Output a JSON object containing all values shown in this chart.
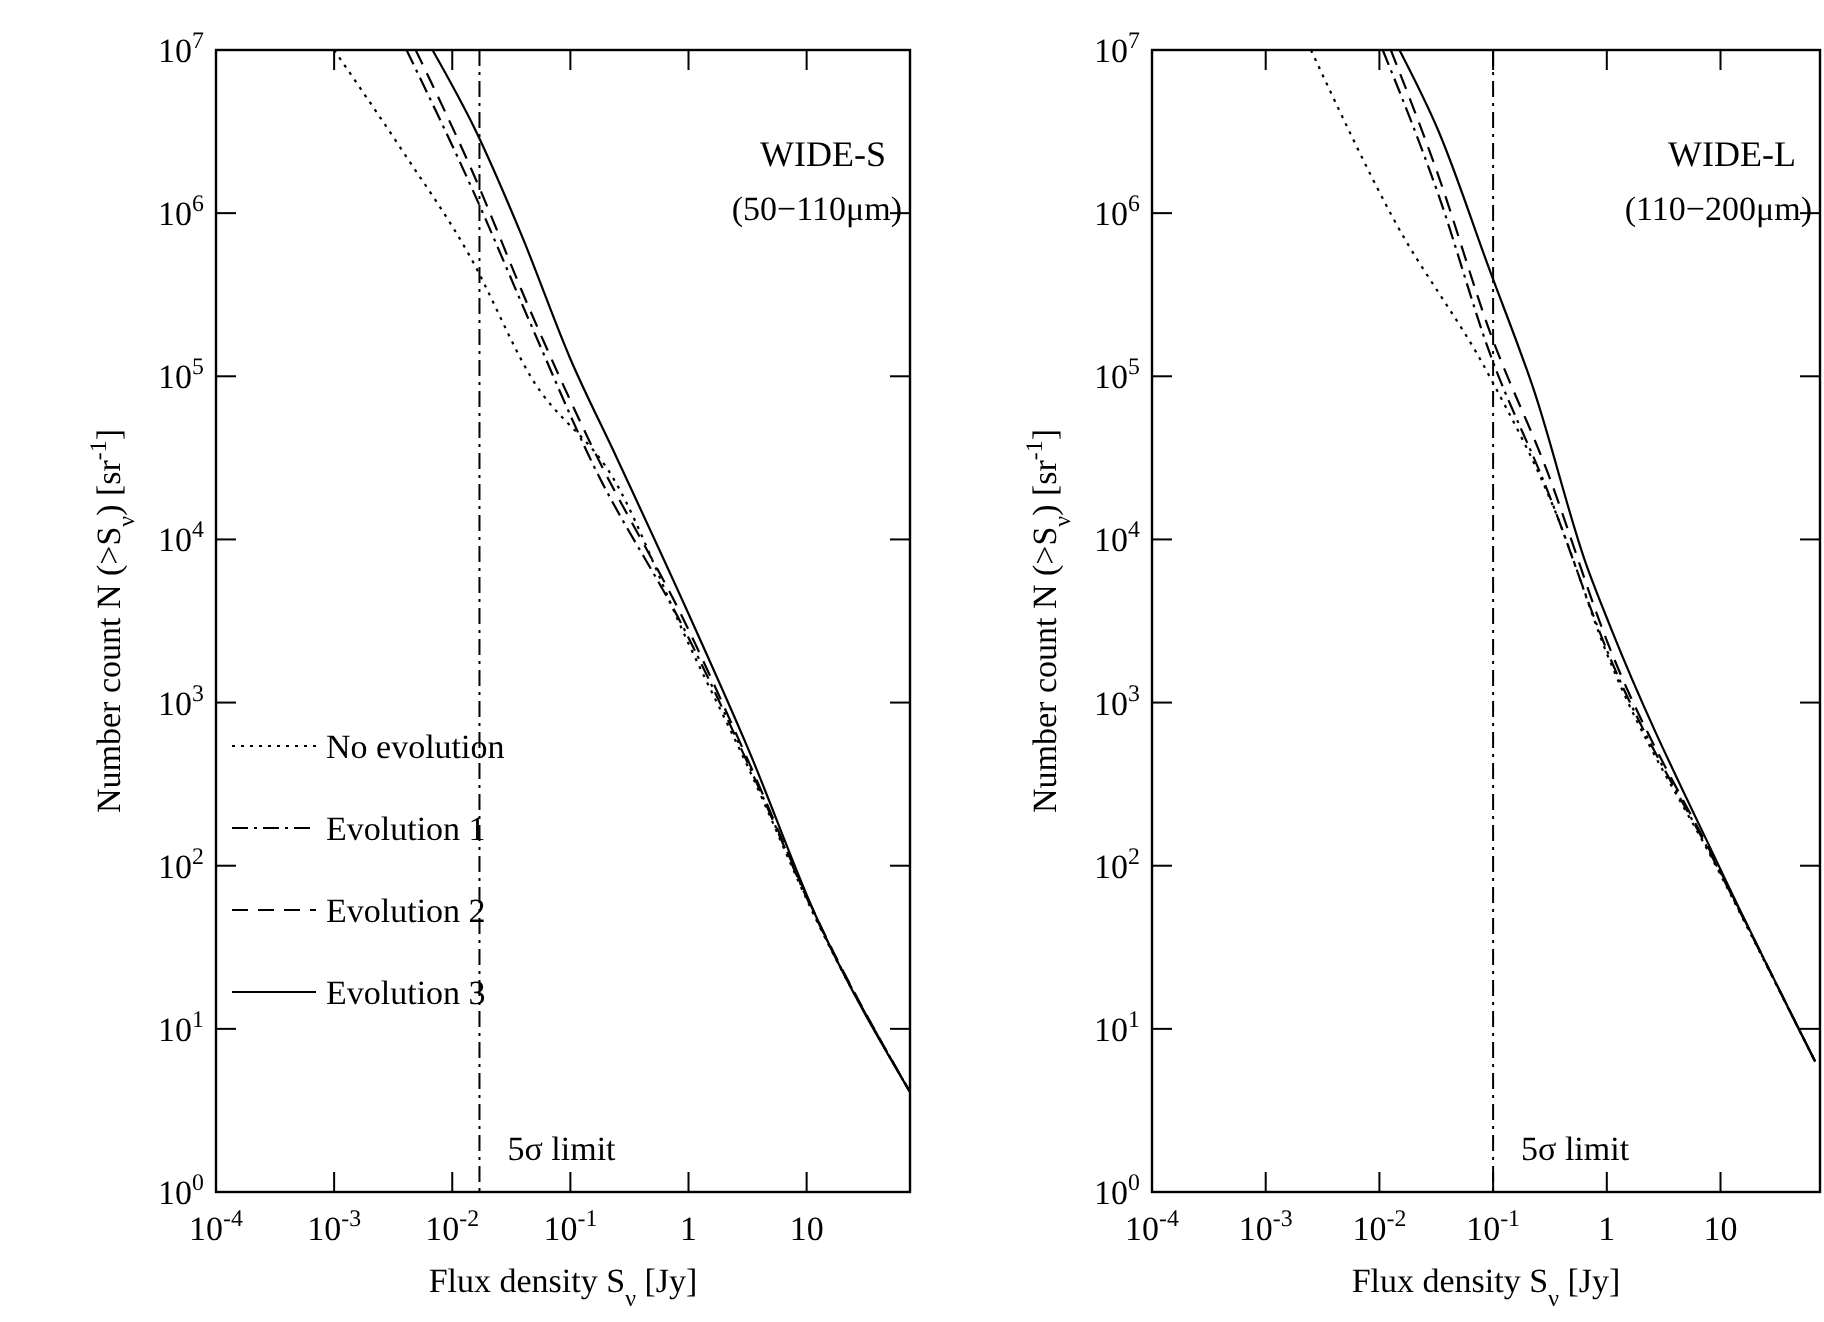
{
  "chart_data": [
    {
      "type": "line",
      "title": "WIDE-S",
      "subtitle": "(50−110μm)",
      "xlabel": "Flux density S$_{ν}$ [Jy]",
      "ylabel": "Number count N (>S$_{ν}$) [sr$^{-1}$]",
      "log": "xy",
      "legend": "bottom left",
      "xlim": [
        0.0001,
        75
      ],
      "ylim": [
        1,
        10000000
      ],
      "xticks": [
        {
          "value": 0.0001,
          "label": "10$^{-4}$"
        },
        {
          "value": 0.001,
          "label": "10$^{-3}$"
        },
        {
          "value": 0.01,
          "label": "10$^{-2}$"
        },
        {
          "value": 0.1,
          "label": "10$^{-1}$"
        },
        {
          "value": 1,
          "label": "1"
        },
        {
          "value": 10,
          "label": "10"
        }
      ],
      "yticks": [
        {
          "value": 1,
          "label": "10$^{0}$"
        },
        {
          "value": 10,
          "label": "10$^{1}$"
        },
        {
          "value": 100,
          "label": "10$^{2}$"
        },
        {
          "value": 1000,
          "label": "10$^{3}$"
        },
        {
          "value": 10000,
          "label": "10$^{4}$"
        },
        {
          "value": 100000,
          "label": "10$^{5}$"
        },
        {
          "value": 1000000,
          "label": "10$^{6}$"
        },
        {
          "value": 10000000,
          "label": "10$^{7}$"
        }
      ],
      "ref_lines": [
        {
          "axis": "x",
          "value": 0.017,
          "label": "5σ limit",
          "line_style": "dashdot"
        }
      ],
      "series": [
        {
          "name": "No evolution",
          "color": "#000000",
          "line_style": "dotted",
          "x": [
            0.001,
            0.0038,
            0.014,
            0.046,
            0.245,
            1,
            3.2,
            12,
            75
          ],
          "values": [
            10000000,
            2400000,
            550000,
            100000,
            22000,
            2300,
            400,
            47,
            4.1
          ]
        },
        {
          "name": "Evolution 1",
          "color": "#000000",
          "line_style": "dashdot",
          "x": [
            0.0041,
            0.0148,
            0.046,
            0.145,
            1,
            3.2,
            12,
            75
          ],
          "values": [
            10000000,
            1400000,
            210000,
            32000,
            2500,
            420,
            48,
            4.1
          ]
        },
        {
          "name": "Evolution 2",
          "color": "#000000",
          "line_style": "dashed",
          "x": [
            0.0049,
            0.0148,
            0.046,
            0.145,
            1,
            3.2,
            12,
            75
          ],
          "values": [
            10000000,
            1800000,
            250000,
            40000,
            2800,
            440,
            49,
            4.1
          ]
        },
        {
          "name": "Evolution 3",
          "color": "#000000",
          "line_style": "solid",
          "x": [
            0.0068,
            0.0158,
            0.039,
            0.099,
            0.245,
            1,
            3.2,
            12,
            75
          ],
          "values": [
            10000000,
            3200000,
            720000,
            130000,
            32000,
            3500,
            520,
            49,
            4.1
          ]
        }
      ]
    },
    {
      "type": "line",
      "title": "WIDE-L",
      "subtitle": "(110−200μm)",
      "xlabel": "Flux density S$_{ν}$ [Jy]",
      "ylabel": "Number count N (>S$_{ν}$) [sr$^{-1}$]",
      "log": "xy",
      "xlim": [
        0.0001,
        75
      ],
      "ylim": [
        1,
        10000000
      ],
      "xticks": [
        {
          "value": 0.0001,
          "label": "10$^{-4}$"
        },
        {
          "value": 0.001,
          "label": "10$^{-3}$"
        },
        {
          "value": 0.01,
          "label": "10$^{-2}$"
        },
        {
          "value": 0.1,
          "label": "10$^{-1}$"
        },
        {
          "value": 1,
          "label": "1"
        },
        {
          "value": 10,
          "label": "10"
        }
      ],
      "yticks": [
        {
          "value": 1,
          "label": "10$^{0}$"
        },
        {
          "value": 10,
          "label": "10$^{1}$"
        },
        {
          "value": 100,
          "label": "10$^{2}$"
        },
        {
          "value": 1000,
          "label": "10$^{3}$"
        },
        {
          "value": 10000,
          "label": "10$^{4}$"
        },
        {
          "value": 100000,
          "label": "10$^{5}$"
        },
        {
          "value": 1000000,
          "label": "10$^{6}$"
        },
        {
          "value": 10000000,
          "label": "10$^{7}$"
        }
      ],
      "ref_lines": [
        {
          "axis": "x",
          "value": 0.1,
          "label": "5σ limit",
          "line_style": "dashdot"
        }
      ],
      "series": [
        {
          "color": "#000000",
          "line_style": "dotted",
          "x": [
            0.0025,
            0.013,
            0.093,
            0.35,
            1,
            10,
            68
          ],
          "values": [
            10000000,
            950000,
            100000,
            15000,
            2000,
            88,
            6.3
          ]
        },
        {
          "color": "#000000",
          "line_style": "dashdot",
          "x": [
            0.0107,
            0.033,
            0.093,
            0.3,
            1,
            10,
            68
          ],
          "values": [
            10000000,
            1300000,
            140000,
            20000,
            2100,
            90,
            6.3
          ]
        },
        {
          "color": "#000000",
          "line_style": "dashed",
          "x": [
            0.0126,
            0.033,
            0.093,
            0.3,
            1,
            10,
            68
          ],
          "values": [
            10000000,
            1700000,
            190000,
            26000,
            2400,
            92,
            6.3
          ]
        },
        {
          "color": "#000000",
          "line_style": "solid",
          "x": [
            0.015,
            0.033,
            0.093,
            0.23,
            0.66,
            1.1,
            10,
            68
          ],
          "values": [
            10000000,
            3200000,
            450000,
            81000,
            7000,
            2800,
            95,
            6.3
          ]
        }
      ]
    }
  ]
}
